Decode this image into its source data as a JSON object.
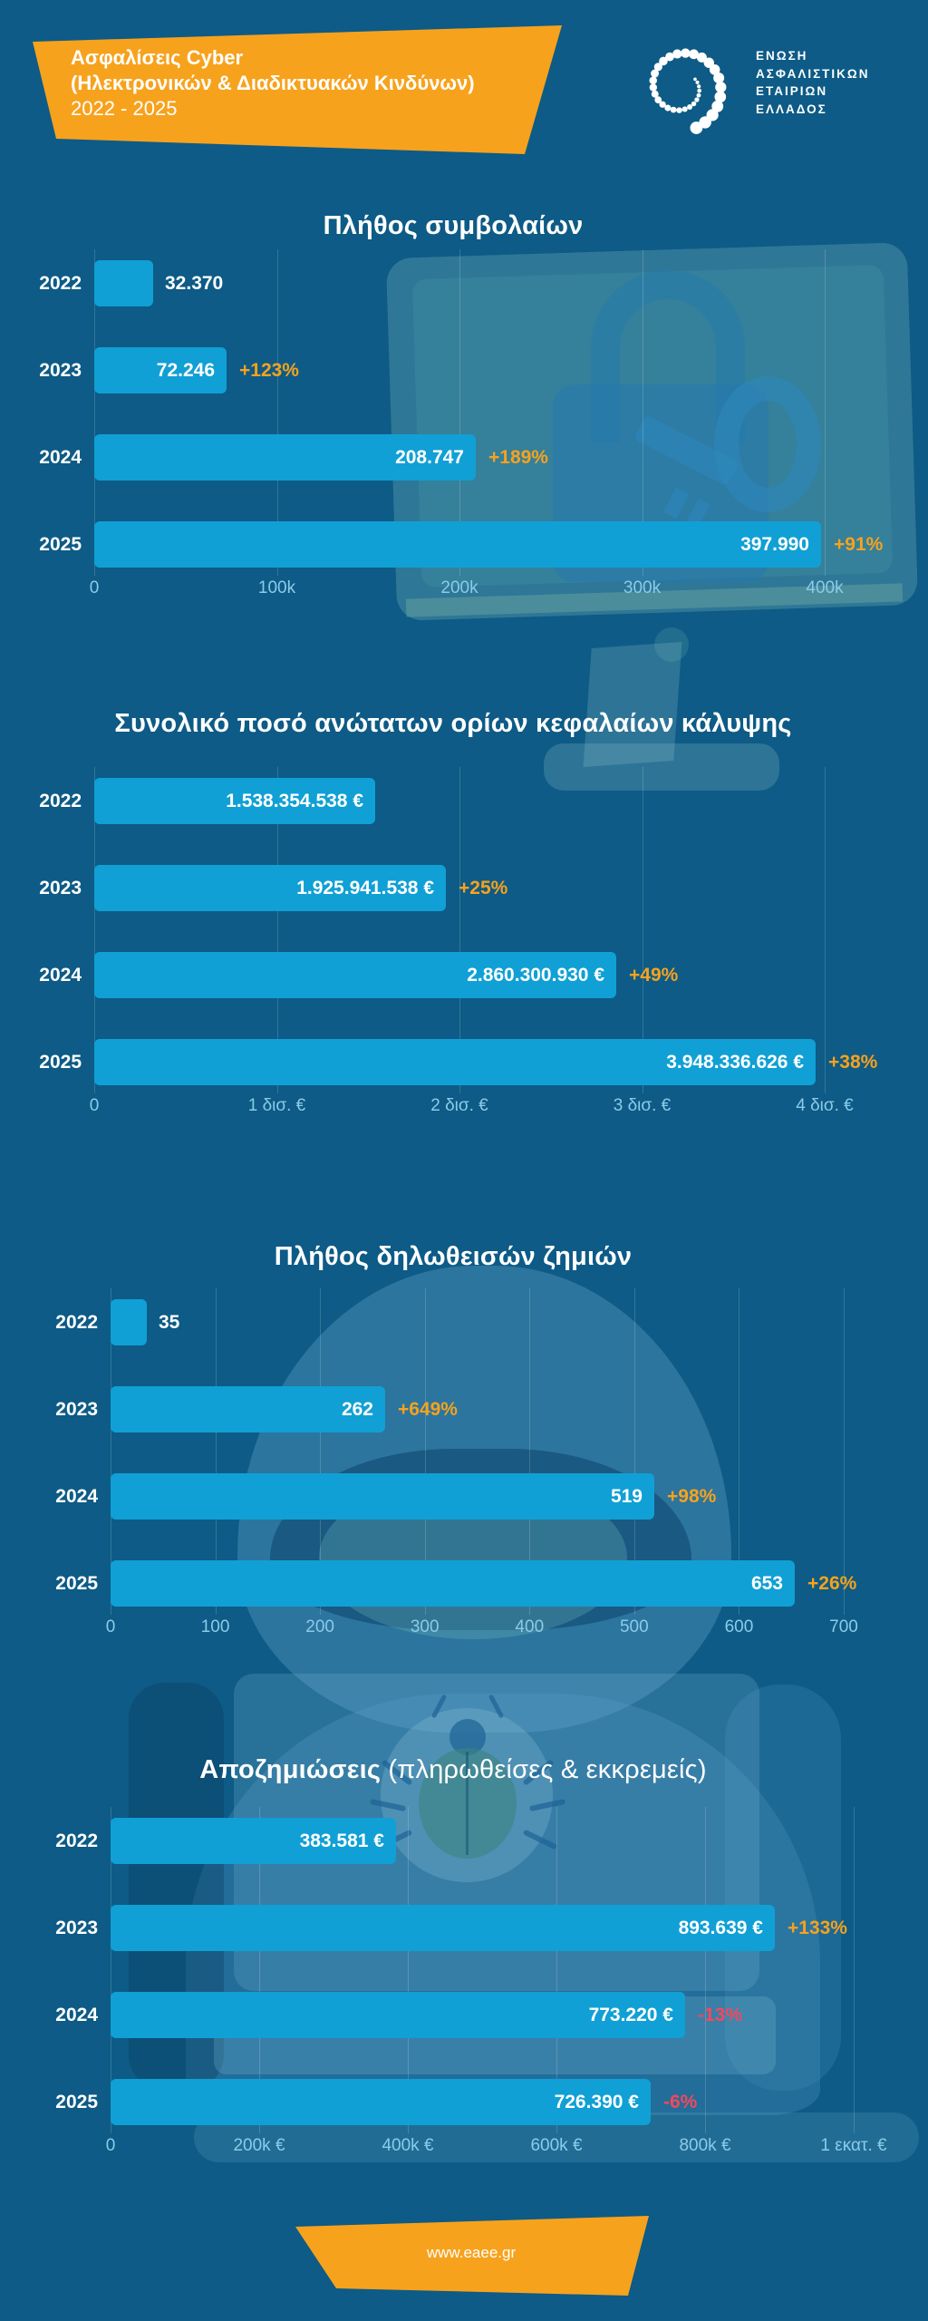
{
  "header": {
    "banner_line1": "Ασφαλίσεις Cyber",
    "banner_line2": "(Ηλεκτρονικών & Διαδικτυακών Κινδύνων)",
    "banner_line3": "2022 - 2025",
    "logo_lines": [
      "ΕΝΩΣΗ",
      "ΑΣΦΑΛΙΣΤΙΚΩΝ",
      "ΕΤΑΙΡΙΩΝ",
      "ΕΛΛΑΔΟΣ"
    ]
  },
  "footer": {
    "url": "www.eaee.gr"
  },
  "colors": {
    "background": "#0D5B86",
    "bar": "#10A0D5",
    "accent_orange": "#F7A21D",
    "negative_red": "#F5475C",
    "tick_label": "#8BCBEA",
    "text_white": "#FFFFFF"
  },
  "chart_data": [
    {
      "type": "bar",
      "title": "Πλήθος συμβολαίων",
      "title_light": "",
      "categories": [
        "2022",
        "2023",
        "2024",
        "2025"
      ],
      "values": [
        32370,
        72246,
        208747,
        397990
      ],
      "value_labels": [
        "32.370",
        "72.246",
        "208.747",
        "397.990"
      ],
      "pct_labels": [
        "",
        "+123%",
        "+189%",
        "+91%"
      ],
      "xlim": [
        0,
        400000
      ],
      "grid": true,
      "ticks": [
        {
          "v": 0,
          "label": "0"
        },
        {
          "v": 100000,
          "label": "100k"
        },
        {
          "v": 200000,
          "label": "200k"
        },
        {
          "v": 300000,
          "label": "300k"
        },
        {
          "v": 400000,
          "label": "400k"
        }
      ]
    },
    {
      "type": "bar",
      "title": "Συνολικό ποσό ανώτατων ορίων κεφαλαίων κάλυψης",
      "title_light": "",
      "categories": [
        "2022",
        "2023",
        "2024",
        "2025"
      ],
      "values": [
        1538354538,
        1925941538,
        2860300930,
        3948336626
      ],
      "value_labels": [
        "1.538.354.538 €",
        "1.925.941.538 €",
        "2.860.300.930 €",
        "3.948.336.626 €"
      ],
      "pct_labels": [
        "",
        "+25%",
        "+49%",
        "+38%"
      ],
      "xlim": [
        0,
        4000000000
      ],
      "grid": true,
      "ticks": [
        {
          "v": 0,
          "label": "0"
        },
        {
          "v": 1000000000,
          "label": "1 δισ. €"
        },
        {
          "v": 2000000000,
          "label": "2 δισ. €"
        },
        {
          "v": 3000000000,
          "label": "3 δισ. €"
        },
        {
          "v": 4000000000,
          "label": "4 δισ. €"
        }
      ]
    },
    {
      "type": "bar",
      "title": "Πλήθος δηλωθεισών ζημιών",
      "title_light": "",
      "categories": [
        "2022",
        "2023",
        "2024",
        "2025"
      ],
      "values": [
        35,
        262,
        519,
        653
      ],
      "value_labels": [
        "35",
        "262",
        "519",
        "653"
      ],
      "pct_labels": [
        "",
        "+649%",
        "+98%",
        "+26%"
      ],
      "xlim": [
        0,
        700
      ],
      "grid": true,
      "ticks": [
        {
          "v": 0,
          "label": "0"
        },
        {
          "v": 100,
          "label": "100"
        },
        {
          "v": 200,
          "label": "200"
        },
        {
          "v": 300,
          "label": "300"
        },
        {
          "v": 400,
          "label": "400"
        },
        {
          "v": 500,
          "label": "500"
        },
        {
          "v": 600,
          "label": "600"
        },
        {
          "v": 700,
          "label": "700"
        }
      ]
    },
    {
      "type": "bar",
      "title": "Αποζημιώσεις",
      "title_light": " (πληρωθείσες & εκκρεμείς)",
      "categories": [
        "2022",
        "2023",
        "2024",
        "2025"
      ],
      "values": [
        383581,
        893639,
        773220,
        726390
      ],
      "value_labels": [
        "383.581 €",
        "893.639 €",
        "773.220 €",
        "726.390 €"
      ],
      "pct_labels": [
        "",
        "+133%",
        "-13%",
        "-6%"
      ],
      "xlim": [
        0,
        1000000
      ],
      "grid": true,
      "ticks": [
        {
          "v": 0,
          "label": "0"
        },
        {
          "v": 200000,
          "label": "200k €"
        },
        {
          "v": 400000,
          "label": "400k €"
        },
        {
          "v": 600000,
          "label": "600k €"
        },
        {
          "v": 800000,
          "label": "800k €"
        },
        {
          "v": 1000000,
          "label": "1 εκατ. €"
        }
      ]
    }
  ]
}
